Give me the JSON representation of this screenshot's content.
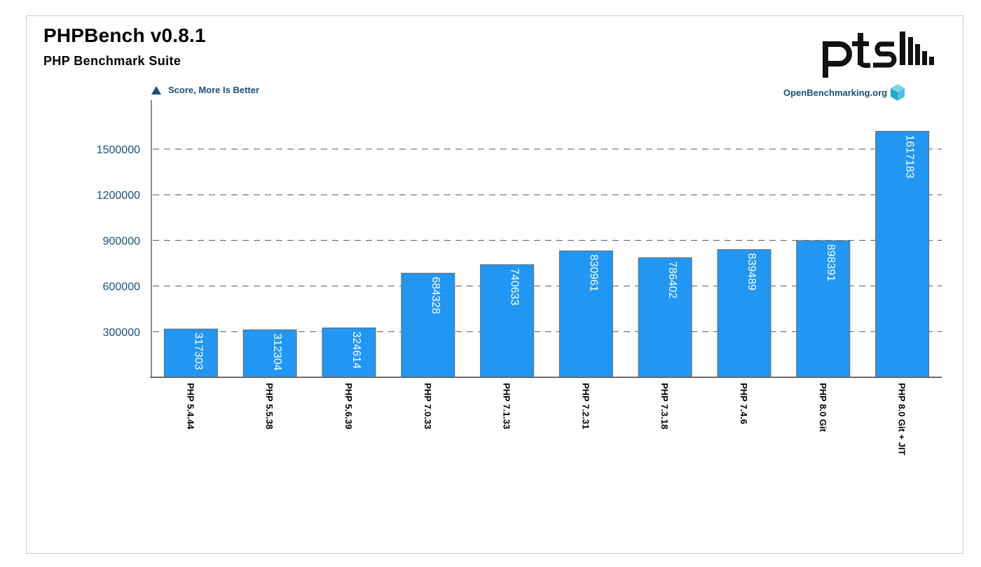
{
  "header": {
    "title": "PHPBench v0.8.1",
    "subtitle": "PHP Benchmark Suite",
    "metric_label": "Score, More Is Better",
    "site": "OpenBenchmarking.org"
  },
  "colors": {
    "bar": "#2196f3",
    "bar_border": "#6b6b6b",
    "axis_text": "#1a4f7a",
    "gridline": "#555555"
  },
  "icons": {
    "logo": "pts-logo",
    "metric_indicator": "triangle-up-icon",
    "site_icon": "cube-icon"
  },
  "chart_data": {
    "type": "bar",
    "title": "PHPBench v0.8.1",
    "subtitle": "PHP Benchmark Suite",
    "ylabel": "Score, More Is Better",
    "categories": [
      "PHP 5.4.44",
      "PHP 5.5.38",
      "PHP 5.6.39",
      "PHP 7.0.33",
      "PHP 7.1.33",
      "PHP 7.2.31",
      "PHP 7.3.18",
      "PHP 7.4.6",
      "PHP 8.0 Git",
      "PHP 8.0 Git + JIT"
    ],
    "values": [
      317303,
      312304,
      324614,
      684328,
      740633,
      830961,
      786402,
      839489,
      898391,
      1617183
    ],
    "yticks": [
      300000,
      600000,
      900000,
      1200000,
      1500000
    ],
    "ylim": [
      0,
      1800000
    ],
    "grid": true,
    "orientation": "vertical",
    "value_labels": true
  }
}
